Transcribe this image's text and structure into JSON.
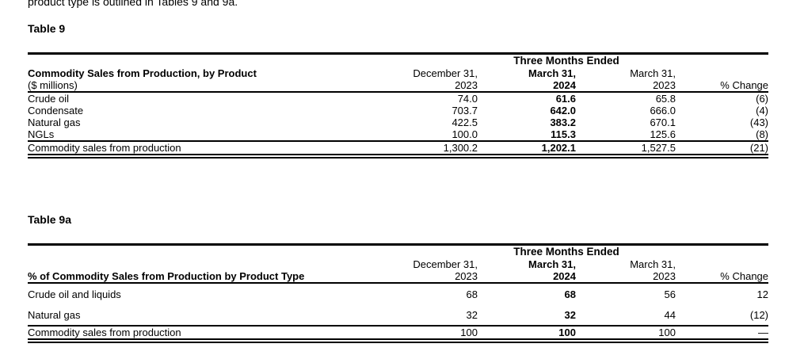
{
  "page": {
    "intro_text": "product type is outlined in Tables 9 and 9a."
  },
  "tables": [
    {
      "title": "Table 9",
      "span_header": "Three Months Ended",
      "row_header_line1": "Commodity Sales from Production, by Product",
      "row_header_line2": "($ millions)",
      "columns": [
        {
          "line1": "December 31,",
          "line2": "2023",
          "bold": false
        },
        {
          "line1": "March 31,",
          "line2": "2024",
          "bold": true
        },
        {
          "line1": "March 31,",
          "line2": "2023",
          "bold": false
        },
        {
          "line1": "",
          "line2": "% Change",
          "bold": false
        }
      ],
      "rows": [
        {
          "label": "Crude oil",
          "values": [
            "74.0",
            "61.6",
            "65.8",
            "(6)"
          ]
        },
        {
          "label": "Condensate",
          "values": [
            "703.7",
            "642.0",
            "666.0",
            "(4)"
          ]
        },
        {
          "label": "Natural gas",
          "values": [
            "422.5",
            "383.2",
            "670.1",
            "(43)"
          ]
        },
        {
          "label": "NGLs",
          "values": [
            "100.0",
            "115.3",
            "125.6",
            "(8)"
          ]
        }
      ],
      "total_row": {
        "label": "Commodity sales from production",
        "values": [
          "1,300.2",
          "1,202.1",
          "1,527.5",
          "(21)"
        ]
      }
    },
    {
      "title": "Table 9a",
      "span_header": "Three Months Ended",
      "row_header_line1": "% of Commodity Sales from Production by Product Type",
      "row_header_line2": "",
      "columns": [
        {
          "line1": "December 31,",
          "line2": "2023",
          "bold": false
        },
        {
          "line1": "March 31,",
          "line2": "2024",
          "bold": true
        },
        {
          "line1": "March 31,",
          "line2": "2023",
          "bold": false
        },
        {
          "line1": "",
          "line2": "% Change",
          "bold": false
        }
      ],
      "rows": [
        {
          "label": "Crude oil and liquids",
          "values": [
            "68",
            "68",
            "56",
            "12"
          ]
        },
        {
          "label": "Natural gas",
          "values": [
            "32",
            "32",
            "44",
            "(12)"
          ]
        }
      ],
      "total_row": {
        "label": "Commodity sales from production",
        "values": [
          "100",
          "100",
          "100",
          "—"
        ]
      }
    }
  ]
}
